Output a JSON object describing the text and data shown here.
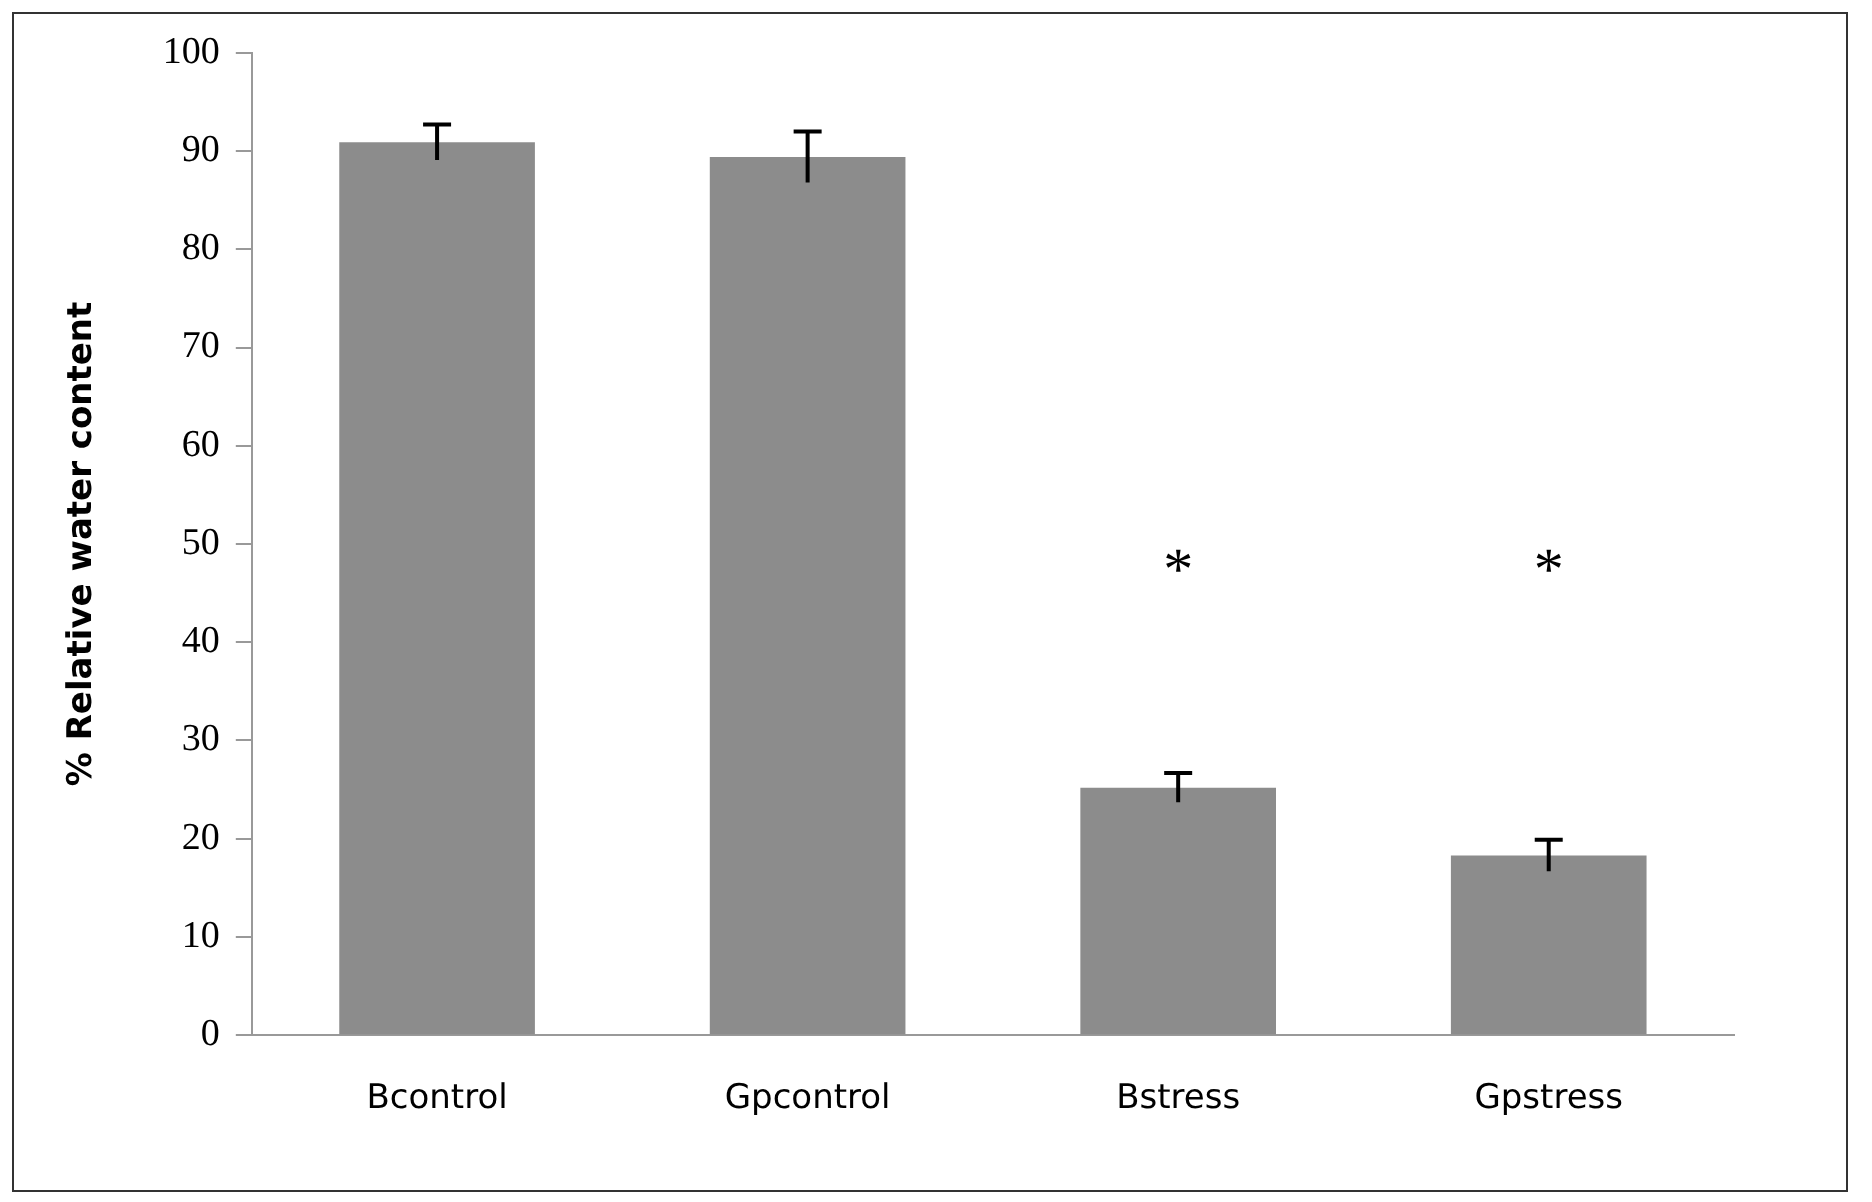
{
  "chart_data": {
    "type": "bar",
    "ylabel": "% Relative water content",
    "categories": [
      "Bcontrol",
      "Gpcontrol",
      "Bstress",
      "Gpstress"
    ],
    "values": [
      90.9,
      89.4,
      25.2,
      18.3
    ],
    "errors": [
      1.8,
      2.6,
      1.5,
      1.6
    ],
    "color": "#8c8c8c",
    "ylim": [
      0,
      100
    ],
    "yticks": [
      0,
      10,
      20,
      30,
      40,
      50,
      60,
      70,
      80,
      90,
      100
    ],
    "grid": false,
    "legend": false,
    "annotations": [
      "*",
      "*"
    ]
  }
}
